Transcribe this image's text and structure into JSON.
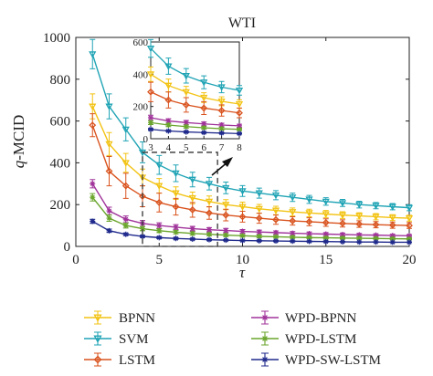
{
  "chart_data": {
    "type": "line",
    "title": "WTI",
    "xlabel": "τ",
    "ylabel_prefix": "q",
    "ylabel_suffix": "-MCID",
    "xlim": [
      0,
      20
    ],
    "ylim": [
      0,
      1000
    ],
    "xticks": [
      0,
      5,
      10,
      15,
      20
    ],
    "yticks": [
      0,
      200,
      400,
      600,
      800,
      1000
    ],
    "grid": false,
    "legend_position": "below",
    "x": [
      1,
      2,
      3,
      4,
      5,
      6,
      7,
      8,
      9,
      10,
      11,
      12,
      13,
      14,
      15,
      16,
      17,
      18,
      19,
      20
    ],
    "series": [
      {
        "name": "BPNN",
        "color": "#f2c314",
        "marker": "triangle-down",
        "values": [
          670,
          490,
          400,
          330,
          290,
          255,
          232,
          215,
          200,
          190,
          180,
          172,
          165,
          160,
          155,
          150,
          146,
          142,
          138,
          135
        ],
        "errors": [
          60,
          55,
          45,
          40,
          35,
          30,
          28,
          26,
          24,
          22,
          21,
          20,
          19,
          18,
          17,
          16,
          15,
          15,
          14,
          14
        ]
      },
      {
        "name": "SVM",
        "color": "#20a4b5",
        "marker": "triangle-down",
        "values": [
          920,
          670,
          560,
          450,
          390,
          350,
          320,
          300,
          280,
          265,
          255,
          245,
          235,
          225,
          215,
          208,
          200,
          195,
          190,
          185
        ],
        "errors": [
          70,
          60,
          55,
          50,
          45,
          40,
          35,
          30,
          28,
          26,
          24,
          22,
          20,
          19,
          18,
          17,
          16,
          15,
          15,
          14
        ]
      },
      {
        "name": "LSTM",
        "color": "#d9531e",
        "marker": "diamond",
        "values": [
          580,
          360,
          290,
          240,
          210,
          190,
          175,
          160,
          150,
          142,
          135,
          128,
          122,
          118,
          114,
          110,
          107,
          104,
          102,
          100
        ],
        "errors": [
          55,
          70,
          60,
          50,
          45,
          40,
          35,
          30,
          28,
          26,
          24,
          22,
          20,
          19,
          18,
          17,
          16,
          15,
          15,
          14
        ]
      },
      {
        "name": "WPD-BPNN",
        "color": "#a0339a",
        "marker": "star",
        "values": [
          300,
          170,
          130,
          110,
          100,
          92,
          85,
          80,
          76,
          72,
          69,
          66,
          63,
          61,
          59,
          57,
          55,
          54,
          52,
          51
        ],
        "errors": [
          20,
          18,
          16,
          14,
          13,
          12,
          11,
          10,
          10,
          9,
          9,
          8,
          8,
          8,
          7,
          7,
          7,
          6,
          6,
          6
        ]
      },
      {
        "name": "WPD-LSTM",
        "color": "#6aa52c",
        "marker": "star",
        "values": [
          235,
          135,
          100,
          85,
          75,
          68,
          62,
          58,
          54,
          51,
          48,
          46,
          44,
          42,
          41,
          40,
          39,
          38,
          37,
          36
        ],
        "errors": [
          18,
          15,
          12,
          10,
          9,
          8,
          8,
          7,
          7,
          6,
          6,
          6,
          5,
          5,
          5,
          5,
          5,
          4,
          4,
          4
        ]
      },
      {
        "name": "WPD-SW-LSTM",
        "color": "#1f2a8c",
        "marker": "star",
        "values": [
          120,
          75,
          58,
          48,
          42,
          38,
          35,
          32,
          30,
          28,
          27,
          26,
          25,
          24,
          23,
          22,
          21,
          21,
          20,
          20
        ],
        "errors": [
          10,
          8,
          6,
          5,
          5,
          4,
          4,
          4,
          3,
          3,
          3,
          3,
          3,
          3,
          3,
          2,
          2,
          2,
          2,
          2
        ]
      }
    ],
    "inset": {
      "xlim": [
        3,
        8
      ],
      "ylim": [
        0,
        600
      ],
      "xticks": [
        3,
        4,
        5,
        6,
        7,
        8
      ],
      "yticks": [
        0,
        200,
        400,
        600
      ],
      "zoom_box": {
        "x": [
          4,
          8.5
        ],
        "y": [
          0,
          450
        ]
      }
    }
  }
}
